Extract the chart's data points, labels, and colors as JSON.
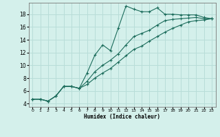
{
  "xlabel": "Humidex (Indice chaleur)",
  "bg_color": "#d4f0eb",
  "grid_color": "#b8ddd8",
  "line_color": "#1a6b5a",
  "xlim": [
    -0.5,
    23.5
  ],
  "ylim": [
    3.5,
    19.8
  ],
  "xticks": [
    0,
    1,
    2,
    3,
    4,
    5,
    6,
    7,
    8,
    9,
    10,
    11,
    12,
    13,
    14,
    15,
    16,
    17,
    18,
    19,
    20,
    21,
    22,
    23
  ],
  "yticks": [
    4,
    6,
    8,
    10,
    12,
    14,
    16,
    18
  ],
  "series1_x": [
    0,
    1,
    2,
    3,
    4,
    5,
    6,
    7,
    8,
    9,
    10,
    11,
    12,
    13,
    14,
    15,
    16,
    17,
    18,
    19,
    20,
    21,
    22,
    23
  ],
  "series1_y": [
    4.7,
    4.7,
    4.4,
    5.2,
    6.7,
    6.7,
    6.4,
    8.8,
    11.6,
    13.2,
    12.3,
    15.8,
    19.3,
    18.8,
    18.4,
    18.4,
    19.0,
    18.0,
    18.0,
    17.9,
    17.9,
    17.9,
    17.5,
    17.3
  ],
  "series2_x": [
    0,
    1,
    2,
    3,
    4,
    5,
    6,
    7,
    8,
    9,
    10,
    11,
    12,
    13,
    14,
    15,
    16,
    17,
    18,
    19,
    20,
    21,
    22,
    23
  ],
  "series2_y": [
    4.7,
    4.7,
    4.4,
    5.2,
    6.7,
    6.7,
    6.4,
    7.5,
    9.0,
    10.0,
    10.8,
    11.8,
    13.2,
    14.5,
    15.0,
    15.5,
    16.3,
    17.0,
    17.2,
    17.3,
    17.4,
    17.5,
    17.3,
    17.3
  ],
  "series3_x": [
    0,
    1,
    2,
    3,
    4,
    5,
    6,
    7,
    8,
    9,
    10,
    11,
    12,
    13,
    14,
    15,
    16,
    17,
    18,
    19,
    20,
    21,
    22,
    23
  ],
  "series3_y": [
    4.7,
    4.7,
    4.4,
    5.2,
    6.7,
    6.7,
    6.4,
    7.0,
    8.0,
    8.8,
    9.5,
    10.5,
    11.5,
    12.5,
    13.0,
    13.8,
    14.5,
    15.2,
    15.8,
    16.3,
    16.8,
    17.0,
    17.1,
    17.3
  ]
}
